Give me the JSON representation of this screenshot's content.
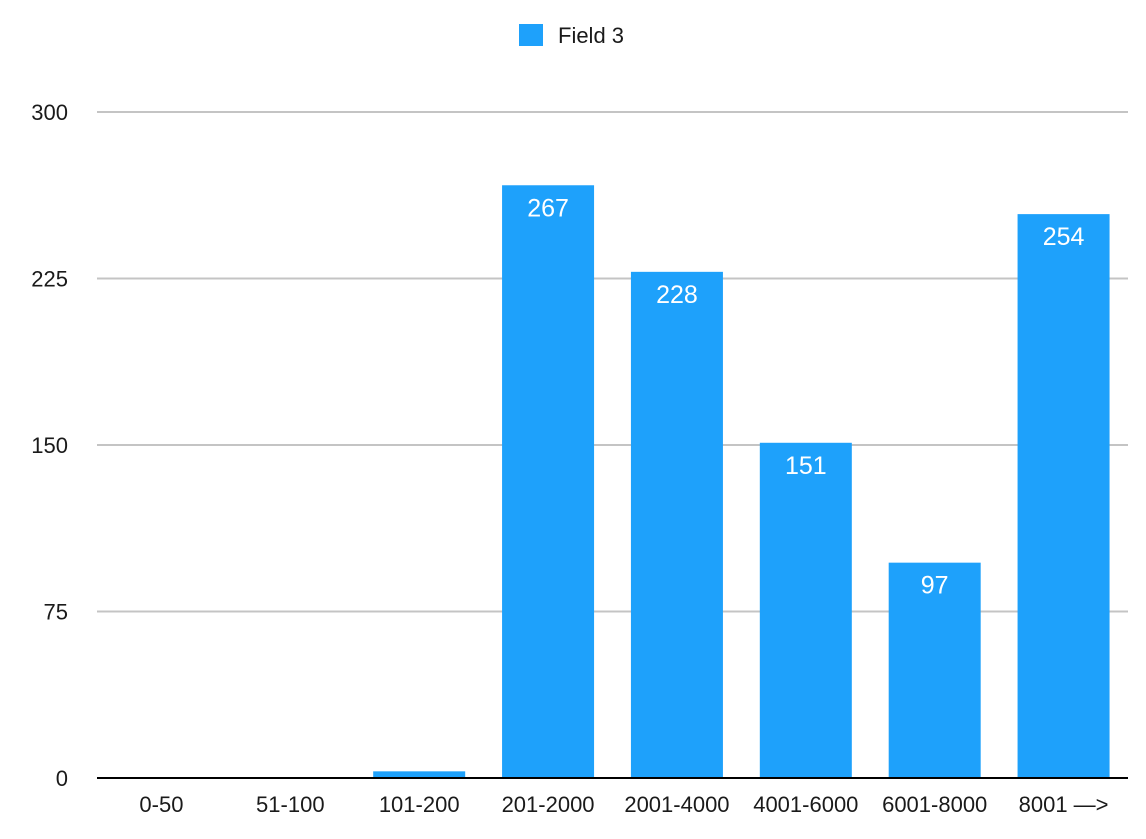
{
  "chart_data": {
    "type": "bar",
    "title": "",
    "xlabel": "",
    "ylabel": "",
    "categories": [
      "0-50",
      "51-100",
      "101-200",
      "201-2000",
      "2001-4000",
      "4001-6000",
      "6001-8000",
      "8001 —>"
    ],
    "series": [
      {
        "name": "Field 3",
        "color": "#1ea1fb",
        "values": [
          0,
          0,
          3,
          267,
          228,
          151,
          97,
          254
        ],
        "data_labels": [
          "",
          "",
          "",
          "267",
          "228",
          "151",
          "97",
          "254"
        ]
      }
    ],
    "ylim": [
      0,
      300
    ],
    "yticks": [
      0,
      75,
      150,
      225,
      300
    ],
    "ytick_labels": [
      "0",
      "75",
      "150",
      "225",
      "300"
    ],
    "grid": true,
    "legend_position": "top-center"
  }
}
